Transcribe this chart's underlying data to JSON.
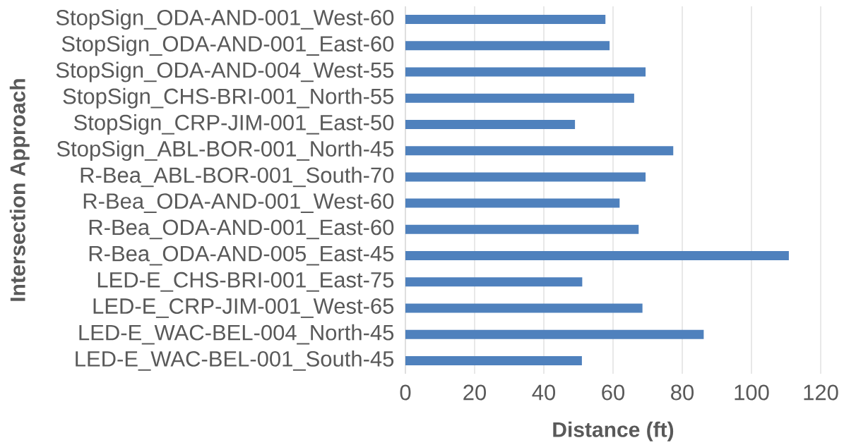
{
  "chart_data": {
    "type": "bar",
    "orientation": "horizontal",
    "xlabel": "Distance (ft)",
    "ylabel": "Intersection Approach",
    "categories": [
      "StopSign_ODA-AND-001_West-60",
      "StopSign_ODA-AND-001_East-60",
      "StopSign_ODA-AND-004_West-55",
      "StopSign_CHS-BRI-001_North-55",
      "StopSign_CRP-JIM-001_East-50",
      "StopSign_ABL-BOR-001_North-45",
      "R-Bea_ABL-BOR-001_South-70",
      "R-Bea_ODA-AND-001_West-60",
      "R-Bea_ODA-AND-001_East-60",
      "R-Bea_ODA-AND-005_East-45",
      "LED-E_CHS-BRI-001_East-75",
      "LED-E_CRP-JIM-001_West-65",
      "LED-E_WAC-BEL-004_North-45",
      "LED-E_WAC-BEL-001_South-45"
    ],
    "values": [
      57.8,
      59.0,
      69.4,
      66.1,
      49.0,
      77.4,
      69.4,
      61.9,
      67.4,
      110.8,
      51.1,
      68.5,
      86.2,
      51.0
    ],
    "color": "#4f81bd",
    "xlim": [
      0,
      120
    ],
    "xticks": [
      0,
      20,
      40,
      60,
      80,
      100,
      120
    ],
    "grid": "x"
  }
}
